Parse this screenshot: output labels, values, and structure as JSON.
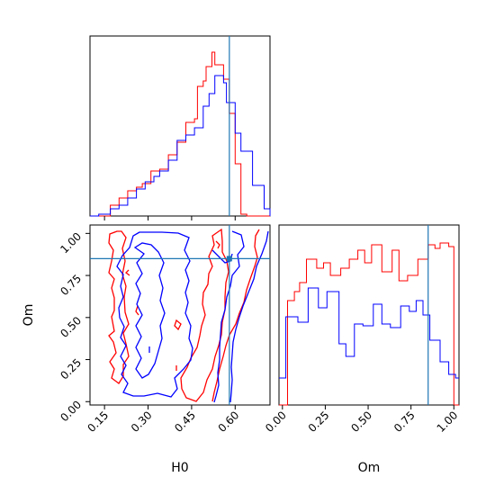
{
  "colors": {
    "series_a": "#ff0000",
    "series_b": "#0000ff",
    "truth": "#1f77b4",
    "axes": "#000000"
  },
  "chart_data": [
    {
      "type": "histogram",
      "panel": "H0 marginal",
      "x_range": [
        0.1,
        0.72
      ],
      "truth_x": 0.58,
      "tick_labels_shown": false,
      "x_ticks": [
        0.15,
        0.3,
        0.45,
        0.6
      ],
      "series": [
        {
          "bins": [
            [
              0.1,
              0.0
            ],
            [
              0.16,
              0.0
            ],
            [
              0.17,
              0.06
            ],
            [
              0.2,
              0.1
            ],
            [
              0.23,
              0.14
            ],
            [
              0.26,
              0.16
            ],
            [
              0.28,
              0.18
            ],
            [
              0.31,
              0.25
            ],
            [
              0.34,
              0.26
            ],
            [
              0.37,
              0.34
            ],
            [
              0.4,
              0.41
            ],
            [
              0.43,
              0.52
            ],
            [
              0.46,
              0.54
            ],
            [
              0.47,
              0.72
            ],
            [
              0.49,
              0.75
            ],
            [
              0.5,
              0.83
            ],
            [
              0.52,
              0.91
            ],
            [
              0.53,
              0.84
            ],
            [
              0.56,
              0.76
            ],
            [
              0.58,
              0.57
            ],
            [
              0.6,
              0.29
            ],
            [
              0.62,
              0.01
            ],
            [
              0.64,
              0.0
            ],
            [
              0.72,
              0.0
            ]
          ]
        },
        {
          "bins": [
            [
              0.1,
              0.0
            ],
            [
              0.13,
              0.01
            ],
            [
              0.17,
              0.04
            ],
            [
              0.2,
              0.06
            ],
            [
              0.23,
              0.1
            ],
            [
              0.26,
              0.15
            ],
            [
              0.29,
              0.19
            ],
            [
              0.32,
              0.22
            ],
            [
              0.34,
              0.25
            ],
            [
              0.37,
              0.31
            ],
            [
              0.4,
              0.42
            ],
            [
              0.43,
              0.45
            ],
            [
              0.46,
              0.49
            ],
            [
              0.49,
              0.61
            ],
            [
              0.51,
              0.68
            ],
            [
              0.53,
              0.78
            ],
            [
              0.56,
              0.74
            ],
            [
              0.57,
              0.63
            ],
            [
              0.6,
              0.46
            ],
            [
              0.62,
              0.36
            ],
            [
              0.66,
              0.17
            ],
            [
              0.7,
              0.04
            ],
            [
              0.72,
              0.0
            ]
          ]
        }
      ]
    },
    {
      "type": "contour",
      "panel": "H0 vs Om",
      "xlabel": "H0",
      "ylabel": "Om",
      "x_range": [
        0.1,
        0.72
      ],
      "y_range": [
        -0.02,
        1.05
      ],
      "x_ticks": [
        "0.15",
        "0.30",
        "0.45",
        "0.60"
      ],
      "y_ticks": [
        "0.00",
        "0.25",
        "0.50",
        "0.75",
        "1.00"
      ],
      "truth": {
        "x": 0.58,
        "y": 0.85
      }
    },
    {
      "type": "histogram",
      "panel": "Om marginal",
      "xlabel": "Om",
      "x_range": [
        -0.02,
        1.03
      ],
      "x_ticks": [
        "0.00",
        "0.25",
        "0.50",
        "0.75",
        "1.00"
      ],
      "truth_x": 0.85,
      "series": [
        {
          "bins": [
            [
              -0.02,
              0.0
            ],
            [
              0.0,
              0.0
            ],
            [
              0.03,
              0.58
            ],
            [
              0.07,
              0.63
            ],
            [
              0.1,
              0.68
            ],
            [
              0.14,
              0.81
            ],
            [
              0.2,
              0.76
            ],
            [
              0.24,
              0.79
            ],
            [
              0.28,
              0.72
            ],
            [
              0.34,
              0.76
            ],
            [
              0.39,
              0.81
            ],
            [
              0.44,
              0.86
            ],
            [
              0.48,
              0.79
            ],
            [
              0.52,
              0.89
            ],
            [
              0.58,
              0.74
            ],
            [
              0.64,
              0.86
            ],
            [
              0.68,
              0.69
            ],
            [
              0.73,
              0.72
            ],
            [
              0.79,
              0.81
            ],
            [
              0.85,
              0.89
            ],
            [
              0.89,
              0.87
            ],
            [
              0.92,
              0.9
            ],
            [
              0.97,
              0.88
            ],
            [
              1.0,
              0.0
            ],
            [
              1.03,
              0.0
            ]
          ]
        },
        {
          "bins": [
            [
              -0.02,
              0.15
            ],
            [
              0.02,
              0.49
            ],
            [
              0.09,
              0.46
            ],
            [
              0.15,
              0.65
            ],
            [
              0.21,
              0.54
            ],
            [
              0.26,
              0.63
            ],
            [
              0.33,
              0.34
            ],
            [
              0.37,
              0.27
            ],
            [
              0.42,
              0.45
            ],
            [
              0.47,
              0.44
            ],
            [
              0.53,
              0.56
            ],
            [
              0.58,
              0.45
            ],
            [
              0.63,
              0.43
            ],
            [
              0.69,
              0.55
            ],
            [
              0.74,
              0.52
            ],
            [
              0.78,
              0.58
            ],
            [
              0.82,
              0.5
            ],
            [
              0.86,
              0.36
            ],
            [
              0.92,
              0.24
            ],
            [
              0.97,
              0.17
            ],
            [
              1.01,
              0.15
            ],
            [
              1.03,
              0.15
            ]
          ]
        }
      ]
    }
  ]
}
